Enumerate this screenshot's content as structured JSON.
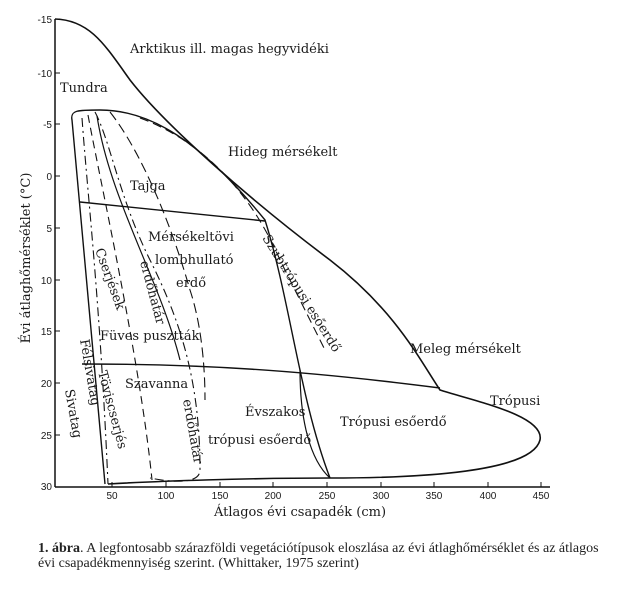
{
  "axes": {
    "x_label": "Átlagos évi csapadék (cm)",
    "y_label": "Évi átlaghőmérséklet (°C)",
    "x_ticks": [
      "50",
      "100",
      "150",
      "200",
      "250",
      "300",
      "350",
      "400",
      "450"
    ],
    "y_ticks": [
      "-15",
      "-10",
      "-5",
      "0",
      "5",
      "10",
      "15",
      "20",
      "25",
      "30"
    ]
  },
  "regions": {
    "arctic": "Arktikus ill. magas hegyvidéki",
    "tundra": "Tundra",
    "cold_temperate": "Hideg mérsékelt",
    "taiga": "Tajga",
    "temperate_forest_1": "Mérsékeltövi",
    "temperate_forest_2": "lombhullató",
    "temperate_forest_3": "erdő",
    "forest_border_1": "erdőhatár",
    "shrubland": "Cserjések",
    "grassland": "Füves pusztták",
    "subtropical_rainforest": "Szubtrópusi esőerdő",
    "warm_temperate": "Meleg mérsékelt",
    "savanna": "Szavanna",
    "semidesert": "Félsivatag",
    "thorn_scrub": "Tövis­cserjés",
    "desert": "Sivatag",
    "forest_border_2": "erdőhatár",
    "seasonal_forest_1": "Évszakos",
    "seasonal_forest_2": "trópusi esőerdő",
    "tropical_rainforest": "Trópusi esőerdő",
    "tropical": "Trópusi"
  },
  "caption": {
    "label": "1. ábra",
    "text": ". A legfontosabb szárazföldi vegetációtípusok eloszlása az évi átlaghőmérséklet és az átlagos évi csapadékmennyiség szerint. (Whittaker, 1975 szerint)"
  }
}
